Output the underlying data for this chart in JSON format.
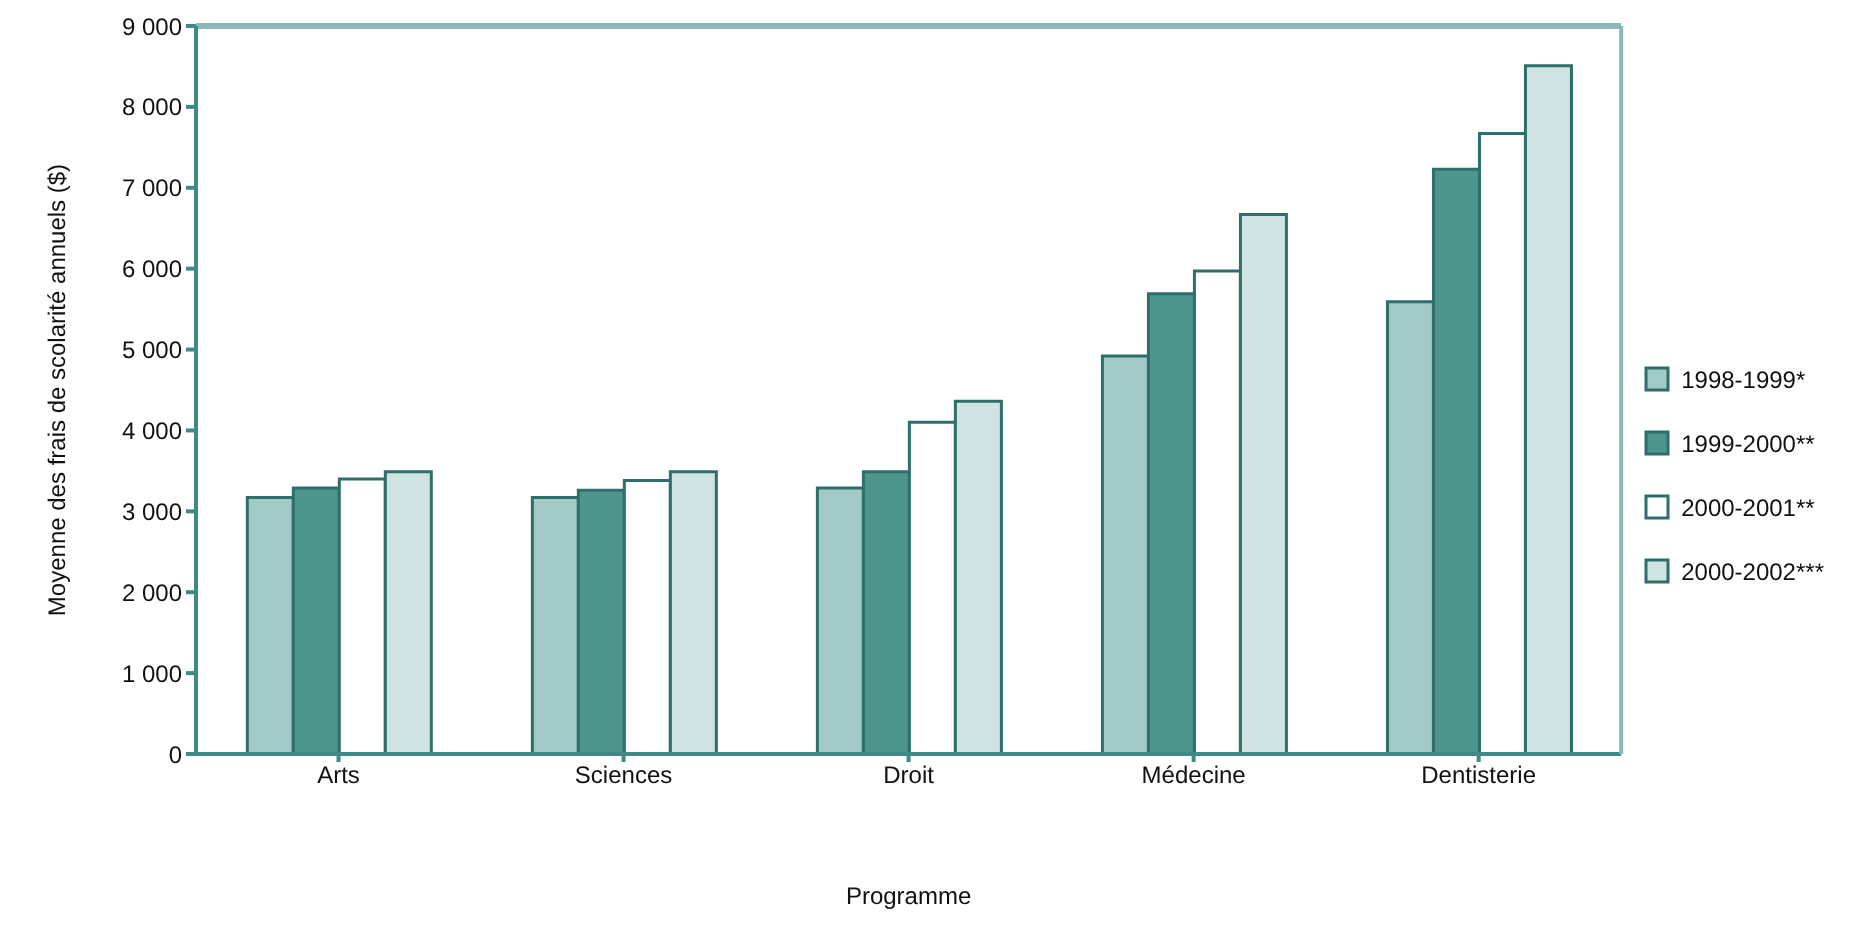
{
  "chart_data": {
    "type": "bar",
    "xlabel": "Programme",
    "ylabel": "Moyenne des frais de scolarité annuels ($)",
    "categories": [
      "Arts",
      "Sciences",
      "Droit",
      "Médecine",
      "Dentisterie"
    ],
    "series": [
      {
        "name": "1998-1999*",
        "color": "#a3c9c6",
        "values": [
          3170,
          3170,
          3290,
          4920,
          5590
        ]
      },
      {
        "name": "1999-2000**",
        "color": "#4e958e",
        "values": [
          3290,
          3260,
          3490,
          5690,
          7230
        ]
      },
      {
        "name": "2000-2001**",
        "color": "#ffffff",
        "values": [
          3400,
          3380,
          4100,
          5970,
          7670
        ]
      },
      {
        "name": "2000-2002***",
        "color": "#cfe3e2",
        "values": [
          3490,
          3490,
          4360,
          6670,
          8510
        ]
      }
    ],
    "ylim": [
      0,
      9000
    ],
    "yticks": [
      {
        "value": 0,
        "label": "0"
      },
      {
        "value": 1000,
        "label": "1 000"
      },
      {
        "value": 2000,
        "label": "2 000"
      },
      {
        "value": 3000,
        "label": "3 000"
      },
      {
        "value": 4000,
        "label": "4 000"
      },
      {
        "value": 5000,
        "label": "5 000"
      },
      {
        "value": 6000,
        "label": "6 000"
      },
      {
        "value": 7000,
        "label": "7 000"
      },
      {
        "value": 8000,
        "label": "8 000"
      },
      {
        "value": 9000,
        "label": "9 000"
      }
    ],
    "grid": false,
    "legend": "right"
  }
}
